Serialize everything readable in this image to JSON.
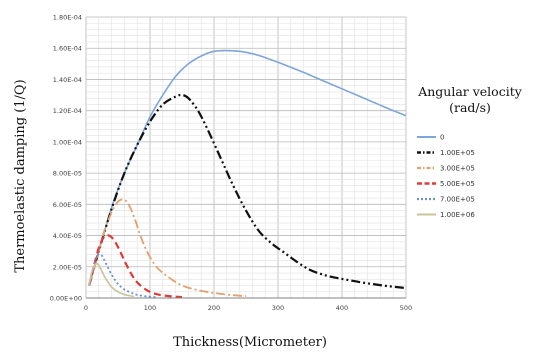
{
  "chart_data": {
    "type": "line",
    "xlabel": "Thickness(Micrometer)",
    "ylabel": "Thermoelastic damping (1/Q)",
    "xlim": [
      0,
      500
    ],
    "ylim": [
      0,
      0.00018
    ],
    "xticks": [
      0,
      100,
      200,
      300,
      400,
      500
    ],
    "yticks": [
      0,
      2e-05,
      4e-05,
      6e-05,
      8e-05,
      0.0001,
      0.00012,
      0.00014,
      0.00016,
      0.00018
    ],
    "ytick_labels": [
      "0.00E+00",
      "2.00E-05",
      "4.00E-05",
      "6.00E-05",
      "8.00E-05",
      "1.00E-04",
      "1.20E-04",
      "1.40E-04",
      "1.60E-04",
      "1.80E-04"
    ],
    "xtick_labels": [
      "0",
      "100",
      "200",
      "300",
      "400",
      "500"
    ],
    "grid": true,
    "legend_title_line1": "Angular velocity",
    "legend_title_line2": "(rad/s)",
    "legend_position": "right",
    "series": [
      {
        "name": "0",
        "color": "#7ea6d8",
        "dash": "solid",
        "x": [
          5,
          20,
          40,
          60,
          80,
          100,
          120,
          140,
          160,
          180,
          200,
          220,
          240,
          260,
          280,
          300,
          320,
          340,
          360,
          380,
          400,
          420,
          440,
          460,
          480,
          500
        ],
        "y": [
          8e-06,
          3e-05,
          5.8e-05,
          8e-05,
          9.8e-05,
          0.000116,
          0.00013,
          0.000142,
          0.00015,
          0.000155,
          0.000158,
          0.0001585,
          0.000158,
          0.0001565,
          0.000154,
          0.000151,
          0.0001478,
          0.0001445,
          0.000141,
          0.0001375,
          0.000134,
          0.0001305,
          0.000127,
          0.0001235,
          0.00012,
          0.0001168
        ]
      },
      {
        "name": "1.00E+05",
        "color": "#111111",
        "dash": "dashdotdot",
        "x": [
          5,
          20,
          40,
          60,
          80,
          100,
          120,
          140,
          150,
          160,
          175,
          190,
          210,
          230,
          250,
          270,
          290,
          310,
          330,
          350,
          370,
          390,
          410,
          430,
          450,
          470,
          490,
          500
        ],
        "y": [
          8e-06,
          3e-05,
          5.7e-05,
          8e-05,
          9.8e-05,
          0.000113,
          0.000124,
          0.000129,
          0.00013,
          0.000128,
          0.00012,
          0.000108,
          9e-05,
          7.2e-05,
          5.6e-05,
          4.3e-05,
          3.5e-05,
          2.9e-05,
          2.3e-05,
          1.8e-05,
          1.5e-05,
          1.3e-05,
          1.15e-05,
          1e-05,
          8.8e-06,
          7.7e-06,
          6.8e-06,
          6.3e-06
        ]
      },
      {
        "name": "3.00E+05",
        "color": "#e0a070",
        "dash": "dashdot",
        "x": [
          5,
          15,
          25,
          35,
          45,
          55,
          65,
          75,
          85,
          95,
          110,
          130,
          150,
          170,
          190,
          210,
          230,
          250
        ],
        "y": [
          8e-06,
          2.2e-05,
          3.8e-05,
          5e-05,
          5.9e-05,
          6.3e-05,
          6.1e-05,
          5.2e-05,
          4e-05,
          3e-05,
          2e-05,
          1.3e-05,
          8e-06,
          5.5e-06,
          3.8e-06,
          2.7e-06,
          1.8e-06,
          1.2e-06
        ]
      },
      {
        "name": "5.00E+05",
        "color": "#e03a3a",
        "dash": "dashed",
        "x": [
          5,
          12,
          20,
          28,
          36,
          44,
          52,
          60,
          70,
          80,
          95,
          110,
          130,
          150
        ],
        "y": [
          8e-06,
          2e-05,
          3.2e-05,
          3.9e-05,
          4e-05,
          3.7e-05,
          3.1e-05,
          2.4e-05,
          1.6e-05,
          1e-05,
          5e-06,
          2.5e-06,
          1.2e-06,
          6e-07
        ]
      },
      {
        "name": "7.00E+05",
        "color": "#6b8ed6",
        "dash": "dotted",
        "x": [
          5,
          10,
          15,
          20,
          25,
          30,
          40,
          50,
          60,
          70,
          80,
          95,
          110
        ],
        "y": [
          8e-06,
          1.7e-05,
          2.5e-05,
          2.8e-05,
          2.7e-05,
          2.3e-05,
          1.5e-05,
          9e-06,
          5.5e-06,
          3.5e-06,
          2e-06,
          1e-06,
          5e-07
        ]
      },
      {
        "name": "1.00E+06",
        "color": "#c8c49a",
        "dash": "solid",
        "x": [
          5,
          8,
          12,
          16,
          20,
          25,
          30,
          40,
          50,
          60,
          75
        ],
        "y": [
          8e-06,
          1.5e-05,
          2e-05,
          2.2e-05,
          2.1e-05,
          1.7e-05,
          1.3e-05,
          7e-06,
          4e-06,
          2.2e-06,
          1e-06
        ]
      }
    ]
  }
}
